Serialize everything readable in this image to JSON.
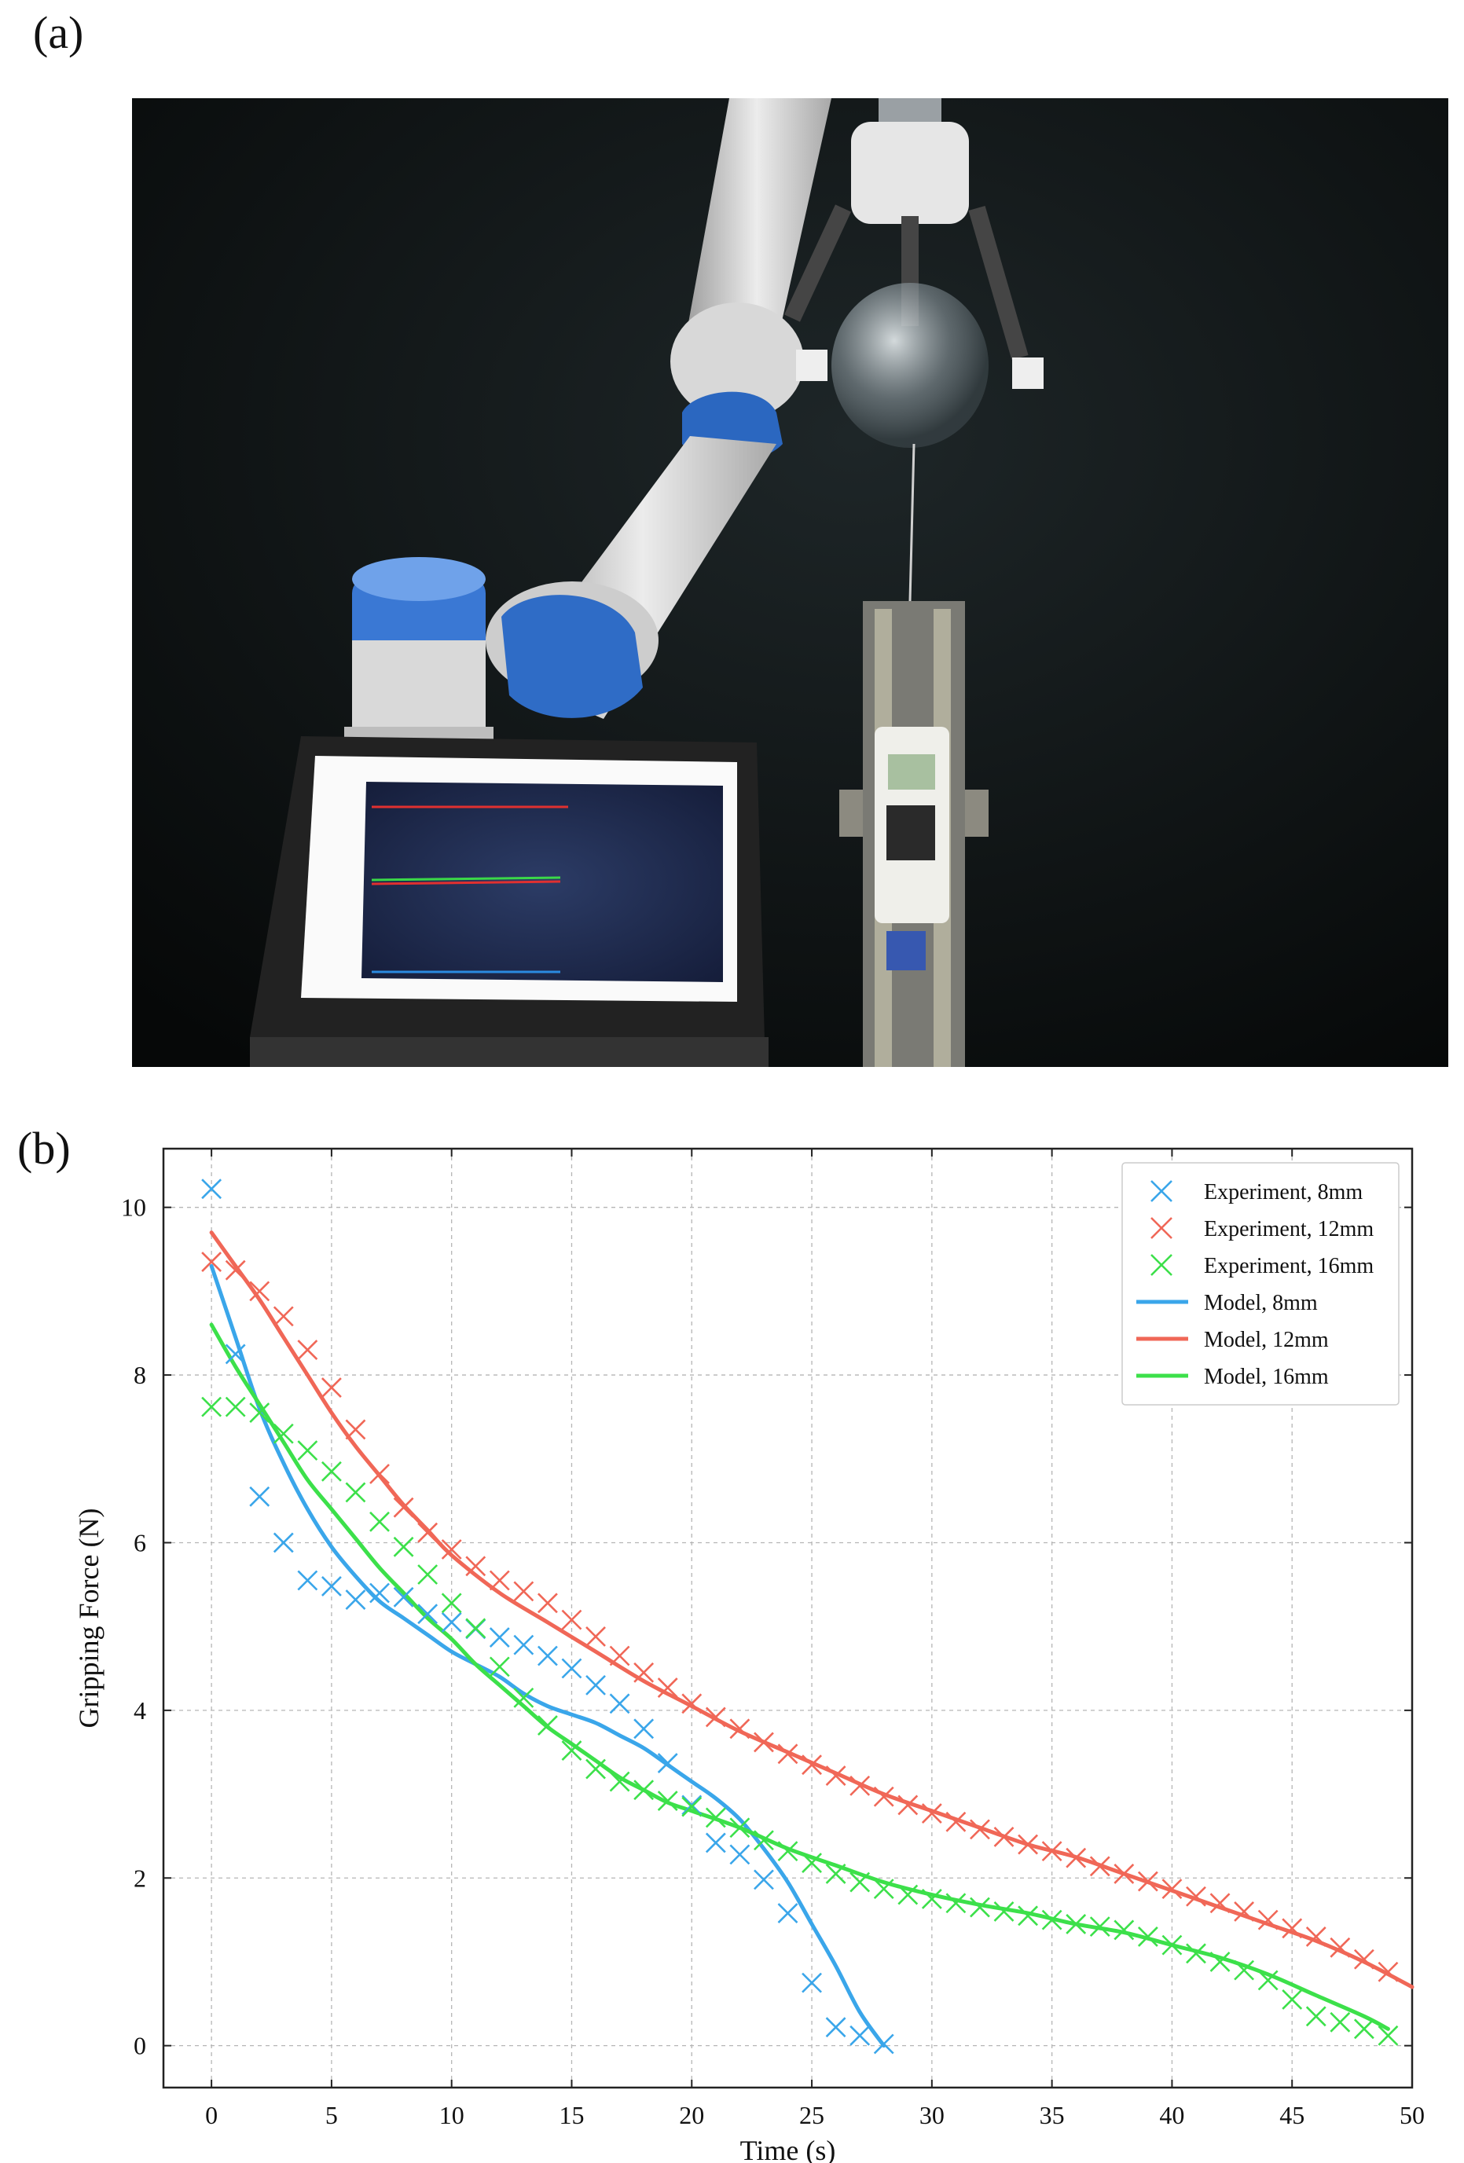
{
  "panels": {
    "a": "(a)",
    "b": "(b)"
  },
  "photo": {
    "subject": "robot-arm-soft-gripper-force-test-photo"
  },
  "colors": {
    "blue": "#3aa6ea",
    "red": "#f06757",
    "green": "#3ce04a",
    "grid": "#b5b5b5"
  },
  "chart_data": {
    "type": "line",
    "xlabel": "Time (s)",
    "ylabel": "Gripping Force (N)",
    "xlim": [
      -2,
      50
    ],
    "ylim": [
      -0.5,
      10.7
    ],
    "xticks": [
      0,
      5,
      10,
      15,
      20,
      25,
      30,
      35,
      40,
      45,
      50
    ],
    "yticks": [
      0,
      2,
      4,
      6,
      8,
      10
    ],
    "grid": true,
    "legend_position": "top-right",
    "series": [
      {
        "name": "Experiment, 8mm",
        "kind": "scatter",
        "color_key": "blue",
        "x": [
          0,
          1,
          2,
          3,
          4,
          5,
          6,
          7,
          8,
          9,
          10,
          11,
          12,
          13,
          14,
          15,
          16,
          17,
          18,
          19,
          20,
          21,
          22,
          23,
          24,
          25,
          26,
          27,
          28
        ],
        "y": [
          10.22,
          8.25,
          6.55,
          6.0,
          5.55,
          5.48,
          5.32,
          5.4,
          5.35,
          5.15,
          5.05,
          4.97,
          4.87,
          4.78,
          4.65,
          4.5,
          4.3,
          4.08,
          3.78,
          3.37,
          2.87,
          2.42,
          2.28,
          1.98,
          1.58,
          0.75,
          0.22,
          0.12,
          0.02
        ]
      },
      {
        "name": "Experiment, 12mm",
        "kind": "scatter",
        "color_key": "red",
        "x": [
          0,
          1,
          2,
          3,
          4,
          5,
          6,
          7,
          8,
          9,
          10,
          11,
          12,
          13,
          14,
          15,
          16,
          17,
          18,
          19,
          20,
          21,
          22,
          23,
          24,
          25,
          26,
          27,
          28,
          29,
          30,
          31,
          32,
          33,
          34,
          35,
          36,
          37,
          38,
          39,
          40,
          41,
          42,
          43,
          44,
          45,
          46,
          47,
          48,
          49
        ],
        "y": [
          9.35,
          9.25,
          9.0,
          8.7,
          8.3,
          7.85,
          7.35,
          6.82,
          6.42,
          6.12,
          5.92,
          5.72,
          5.55,
          5.42,
          5.28,
          5.08,
          4.88,
          4.65,
          4.45,
          4.27,
          4.08,
          3.92,
          3.78,
          3.62,
          3.48,
          3.35,
          3.22,
          3.1,
          2.97,
          2.87,
          2.77,
          2.67,
          2.58,
          2.49,
          2.4,
          2.32,
          2.24,
          2.14,
          2.05,
          1.96,
          1.87,
          1.78,
          1.7,
          1.6,
          1.5,
          1.4,
          1.3,
          1.17,
          1.03,
          0.88
        ]
      },
      {
        "name": "Experiment, 16mm",
        "kind": "scatter",
        "color_key": "green",
        "x": [
          0,
          1,
          2,
          3,
          4,
          5,
          6,
          7,
          8,
          9,
          10,
          11,
          12,
          13,
          14,
          15,
          16,
          17,
          18,
          19,
          20,
          21,
          22,
          23,
          24,
          25,
          26,
          27,
          28,
          29,
          30,
          31,
          32,
          33,
          34,
          35,
          36,
          37,
          38,
          39,
          40,
          41,
          42,
          43,
          44,
          45,
          46,
          47,
          48,
          49
        ],
        "y": [
          7.62,
          7.62,
          7.55,
          7.3,
          7.1,
          6.85,
          6.6,
          6.25,
          5.95,
          5.62,
          5.28,
          4.98,
          4.52,
          4.15,
          3.82,
          3.52,
          3.3,
          3.15,
          3.05,
          2.92,
          2.85,
          2.72,
          2.6,
          2.45,
          2.32,
          2.18,
          2.05,
          1.95,
          1.87,
          1.8,
          1.75,
          1.7,
          1.65,
          1.6,
          1.55,
          1.5,
          1.45,
          1.42,
          1.38,
          1.3,
          1.2,
          1.1,
          1.0,
          0.9,
          0.78,
          0.55,
          0.35,
          0.28,
          0.2,
          0.12
        ]
      },
      {
        "name": "Model, 8mm",
        "kind": "line",
        "color_key": "blue",
        "x": [
          0,
          1,
          2,
          3,
          4,
          5,
          6,
          7,
          8,
          9,
          10,
          11,
          12,
          13,
          14,
          15,
          16,
          17,
          18,
          19,
          20,
          21,
          22,
          23,
          24,
          25,
          26,
          27,
          28
        ],
        "y": [
          9.3,
          8.45,
          7.6,
          6.95,
          6.4,
          5.95,
          5.6,
          5.3,
          5.1,
          4.9,
          4.7,
          4.55,
          4.4,
          4.2,
          4.05,
          3.95,
          3.85,
          3.7,
          3.55,
          3.35,
          3.15,
          2.95,
          2.7,
          2.35,
          1.95,
          1.45,
          0.95,
          0.4,
          0.0
        ]
      },
      {
        "name": "Model, 12mm",
        "kind": "line",
        "color_key": "red",
        "x": [
          0,
          1,
          2,
          3,
          4,
          5,
          6,
          7,
          8,
          9,
          10,
          12,
          14,
          16,
          18,
          20,
          22,
          24,
          26,
          28,
          30,
          32,
          34,
          36,
          38,
          40,
          42,
          44,
          46,
          48,
          50
        ],
        "y": [
          9.7,
          9.3,
          8.9,
          8.45,
          8.0,
          7.55,
          7.15,
          6.8,
          6.45,
          6.15,
          5.85,
          5.4,
          5.05,
          4.7,
          4.35,
          4.05,
          3.75,
          3.5,
          3.25,
          3.0,
          2.8,
          2.6,
          2.4,
          2.25,
          2.05,
          1.85,
          1.65,
          1.45,
          1.25,
          1.0,
          0.7
        ]
      },
      {
        "name": "Model, 16mm",
        "kind": "line",
        "color_key": "green",
        "x": [
          0,
          1,
          2,
          3,
          4,
          5,
          6,
          7,
          8,
          9,
          10,
          11,
          12,
          13,
          14,
          15,
          16,
          17,
          18,
          19,
          20,
          22,
          24,
          26,
          28,
          30,
          32,
          34,
          36,
          38,
          40,
          42,
          44,
          46,
          48,
          49
        ],
        "y": [
          8.6,
          8.1,
          7.65,
          7.2,
          6.75,
          6.4,
          6.05,
          5.7,
          5.4,
          5.1,
          4.85,
          4.55,
          4.3,
          4.05,
          3.8,
          3.6,
          3.4,
          3.2,
          3.05,
          2.9,
          2.8,
          2.6,
          2.35,
          2.15,
          1.95,
          1.8,
          1.68,
          1.58,
          1.45,
          1.35,
          1.2,
          1.05,
          0.85,
          0.6,
          0.35,
          0.2
        ]
      }
    ]
  }
}
